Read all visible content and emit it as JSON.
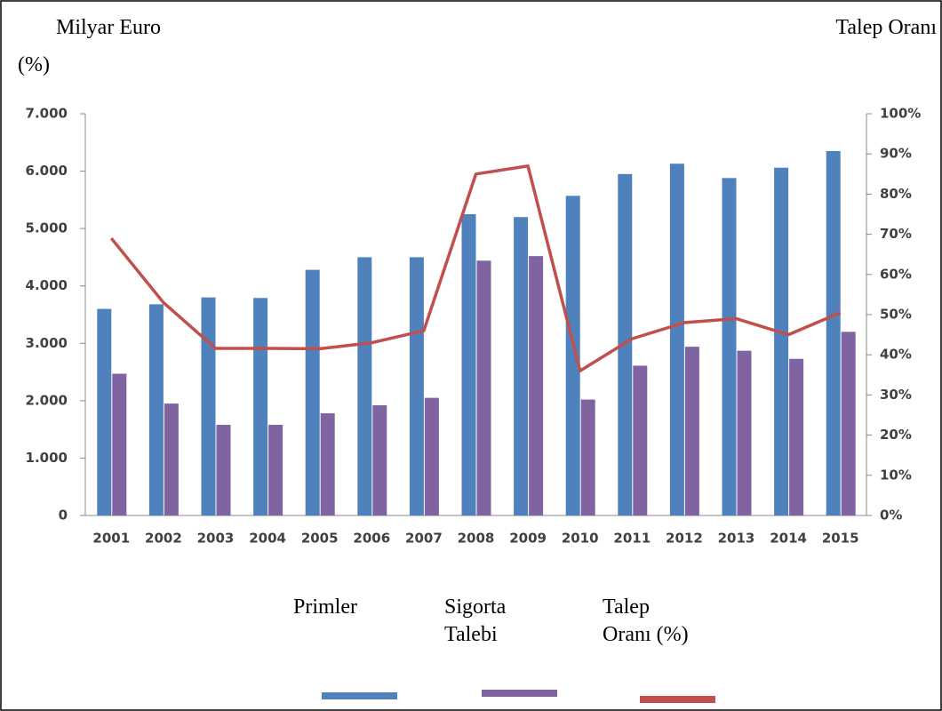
{
  "chart_data": {
    "type": "bar_line",
    "y_label": "Milyar Euro",
    "y2_label": "Talep Oranı",
    "y2_unit_label": "(%)",
    "categories": [
      "2001",
      "2002",
      "2003",
      "2004",
      "2005",
      "2006",
      "2007",
      "2008",
      "2009",
      "2010",
      "2011",
      "2012",
      "2013",
      "2014",
      "2015"
    ],
    "series": [
      {
        "name": "Primler",
        "color": "#4f81bd",
        "type": "bar",
        "values": [
          3600,
          3680,
          3800,
          3790,
          4280,
          4500,
          4500,
          5250,
          5200,
          5570,
          5950,
          6130,
          5880,
          6060,
          6350
        ]
      },
      {
        "name": "Sigorta Talebi",
        "color": "#8064a2",
        "type": "bar",
        "values": [
          2470,
          1950,
          1580,
          1580,
          1780,
          1920,
          2050,
          4440,
          4520,
          2020,
          2610,
          2940,
          2870,
          2730,
          3200
        ]
      },
      {
        "name": "Talep Oranı (%)",
        "color": "#c0504d",
        "type": "line",
        "axis": "y2",
        "values": [
          69,
          53,
          41.6,
          41.6,
          41.5,
          43,
          46,
          85,
          87,
          36,
          44,
          48,
          49,
          45,
          50.5
        ]
      }
    ],
    "ylim": [
      0,
      7000
    ],
    "yticks": [
      0,
      {
        "value": 1000,
        "label": "1.000"
      },
      {
        "value": 2000,
        "label": "2.000"
      },
      {
        "value": 3000,
        "label": "3.000"
      },
      {
        "value": 4000,
        "label": "4.000"
      },
      {
        "value": 5000,
        "label": "5.000"
      },
      {
        "value": 6000,
        "label": "6.000"
      },
      {
        "value": 7000,
        "label": "7.000"
      }
    ],
    "y2lim": [
      0,
      100
    ],
    "y2ticks": [
      {
        "value": 0,
        "label": "0%"
      },
      {
        "value": 10,
        "label": "10%"
      },
      {
        "value": 20,
        "label": "20%"
      },
      {
        "value": 30,
        "label": "30%"
      },
      {
        "value": 40,
        "label": "40%"
      },
      {
        "value": 50,
        "label": "50%"
      },
      {
        "value": 60,
        "label": "60%"
      },
      {
        "value": 70,
        "label": "70%"
      },
      {
        "value": 80,
        "label": "80%"
      },
      {
        "value": 90,
        "label": "90%"
      },
      {
        "value": 100,
        "label": "100%"
      }
    ],
    "grid": false
  }
}
